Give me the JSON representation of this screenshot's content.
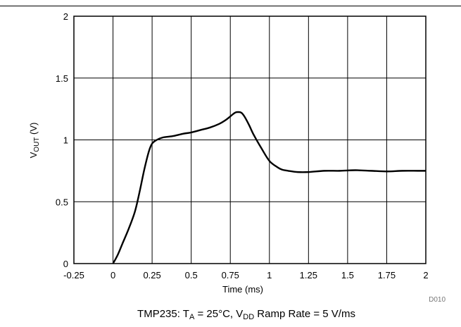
{
  "chart_data": {
    "type": "line",
    "xlabel": "Time (ms)",
    "ylabel_main": "V",
    "ylabel_sub": "OUT",
    "ylabel_unit": " (V)",
    "xlim": [
      -0.25,
      2
    ],
    "ylim": [
      0,
      2
    ],
    "xticks": [
      "-0.25",
      "0",
      "0.25",
      "0.5",
      "0.75",
      "1",
      "1.25",
      "1.5",
      "1.75",
      "2"
    ],
    "yticks": [
      "0",
      "0.5",
      "1",
      "1.5",
      "2"
    ],
    "grid": true,
    "series": [
      {
        "color": "#000000",
        "x": [
          0.0,
          0.03,
          0.06,
          0.1,
          0.14,
          0.17,
          0.2,
          0.23,
          0.25,
          0.28,
          0.32,
          0.38,
          0.45,
          0.5,
          0.56,
          0.62,
          0.68,
          0.72,
          0.75,
          0.78,
          0.8,
          0.82,
          0.84,
          0.87,
          0.9,
          0.95,
          1.0,
          1.05,
          1.08,
          1.12,
          1.18,
          1.25,
          1.35,
          1.45,
          1.55,
          1.65,
          1.75,
          1.85,
          1.95,
          2.0
        ],
        "y": [
          0.0,
          0.07,
          0.16,
          0.28,
          0.42,
          0.58,
          0.76,
          0.91,
          0.97,
          1.0,
          1.02,
          1.03,
          1.05,
          1.06,
          1.08,
          1.1,
          1.13,
          1.16,
          1.19,
          1.22,
          1.225,
          1.22,
          1.19,
          1.12,
          1.04,
          0.93,
          0.83,
          0.78,
          0.76,
          0.75,
          0.74,
          0.74,
          0.75,
          0.75,
          0.755,
          0.75,
          0.745,
          0.75,
          0.75,
          0.75
        ]
      }
    ]
  },
  "figure_id": "D010",
  "caption": {
    "prefix": "TMP235: T",
    "sub1": "A",
    "middle": " = 25°C, V",
    "sub2": "DD",
    "suffix": " Ramp Rate = 5 V/ms"
  }
}
